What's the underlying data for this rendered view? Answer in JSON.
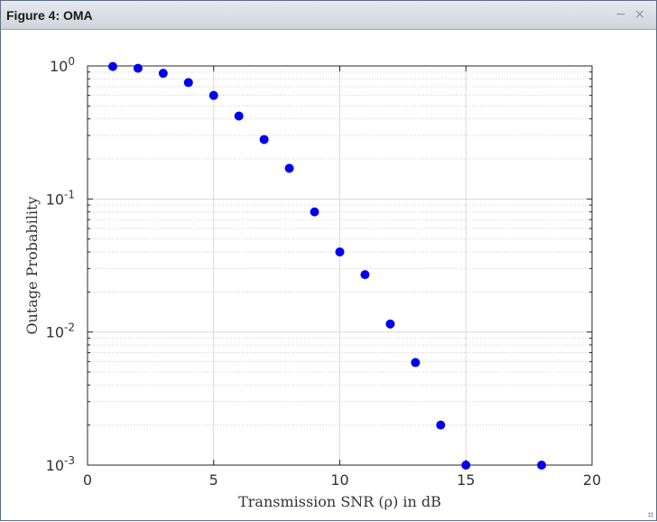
{
  "window": {
    "title": "Figure 4: OMA",
    "minimize_glyph": "−",
    "close_glyph": "×"
  },
  "chart_data": {
    "type": "scatter",
    "title": "",
    "xlabel": "Transmission SNR (ρ) in dB",
    "ylabel": "Outage Probability",
    "xlim": [
      0,
      20
    ],
    "ylim": [
      0.001,
      1
    ],
    "yscale": "log",
    "xticks": [
      0,
      5,
      10,
      15,
      20
    ],
    "yticks": [
      {
        "value": 1,
        "base": "10",
        "exp": "0"
      },
      {
        "value": 0.1,
        "base": "10",
        "exp": "-1"
      },
      {
        "value": 0.01,
        "base": "10",
        "exp": "-2"
      },
      {
        "value": 0.001,
        "base": "10",
        "exp": "-3"
      }
    ],
    "grid": true,
    "legend": "none",
    "series": [
      {
        "color": "#0000ee",
        "marker": "circle",
        "x": [
          1,
          2,
          3,
          4,
          5,
          6,
          7,
          8,
          9,
          10,
          11,
          12,
          13,
          14,
          15,
          18
        ],
        "y": [
          0.99,
          0.96,
          0.88,
          0.75,
          0.6,
          0.42,
          0.28,
          0.17,
          0.08,
          0.04,
          0.027,
          0.0115,
          0.0059,
          0.002,
          0.001,
          0.001
        ]
      }
    ]
  }
}
